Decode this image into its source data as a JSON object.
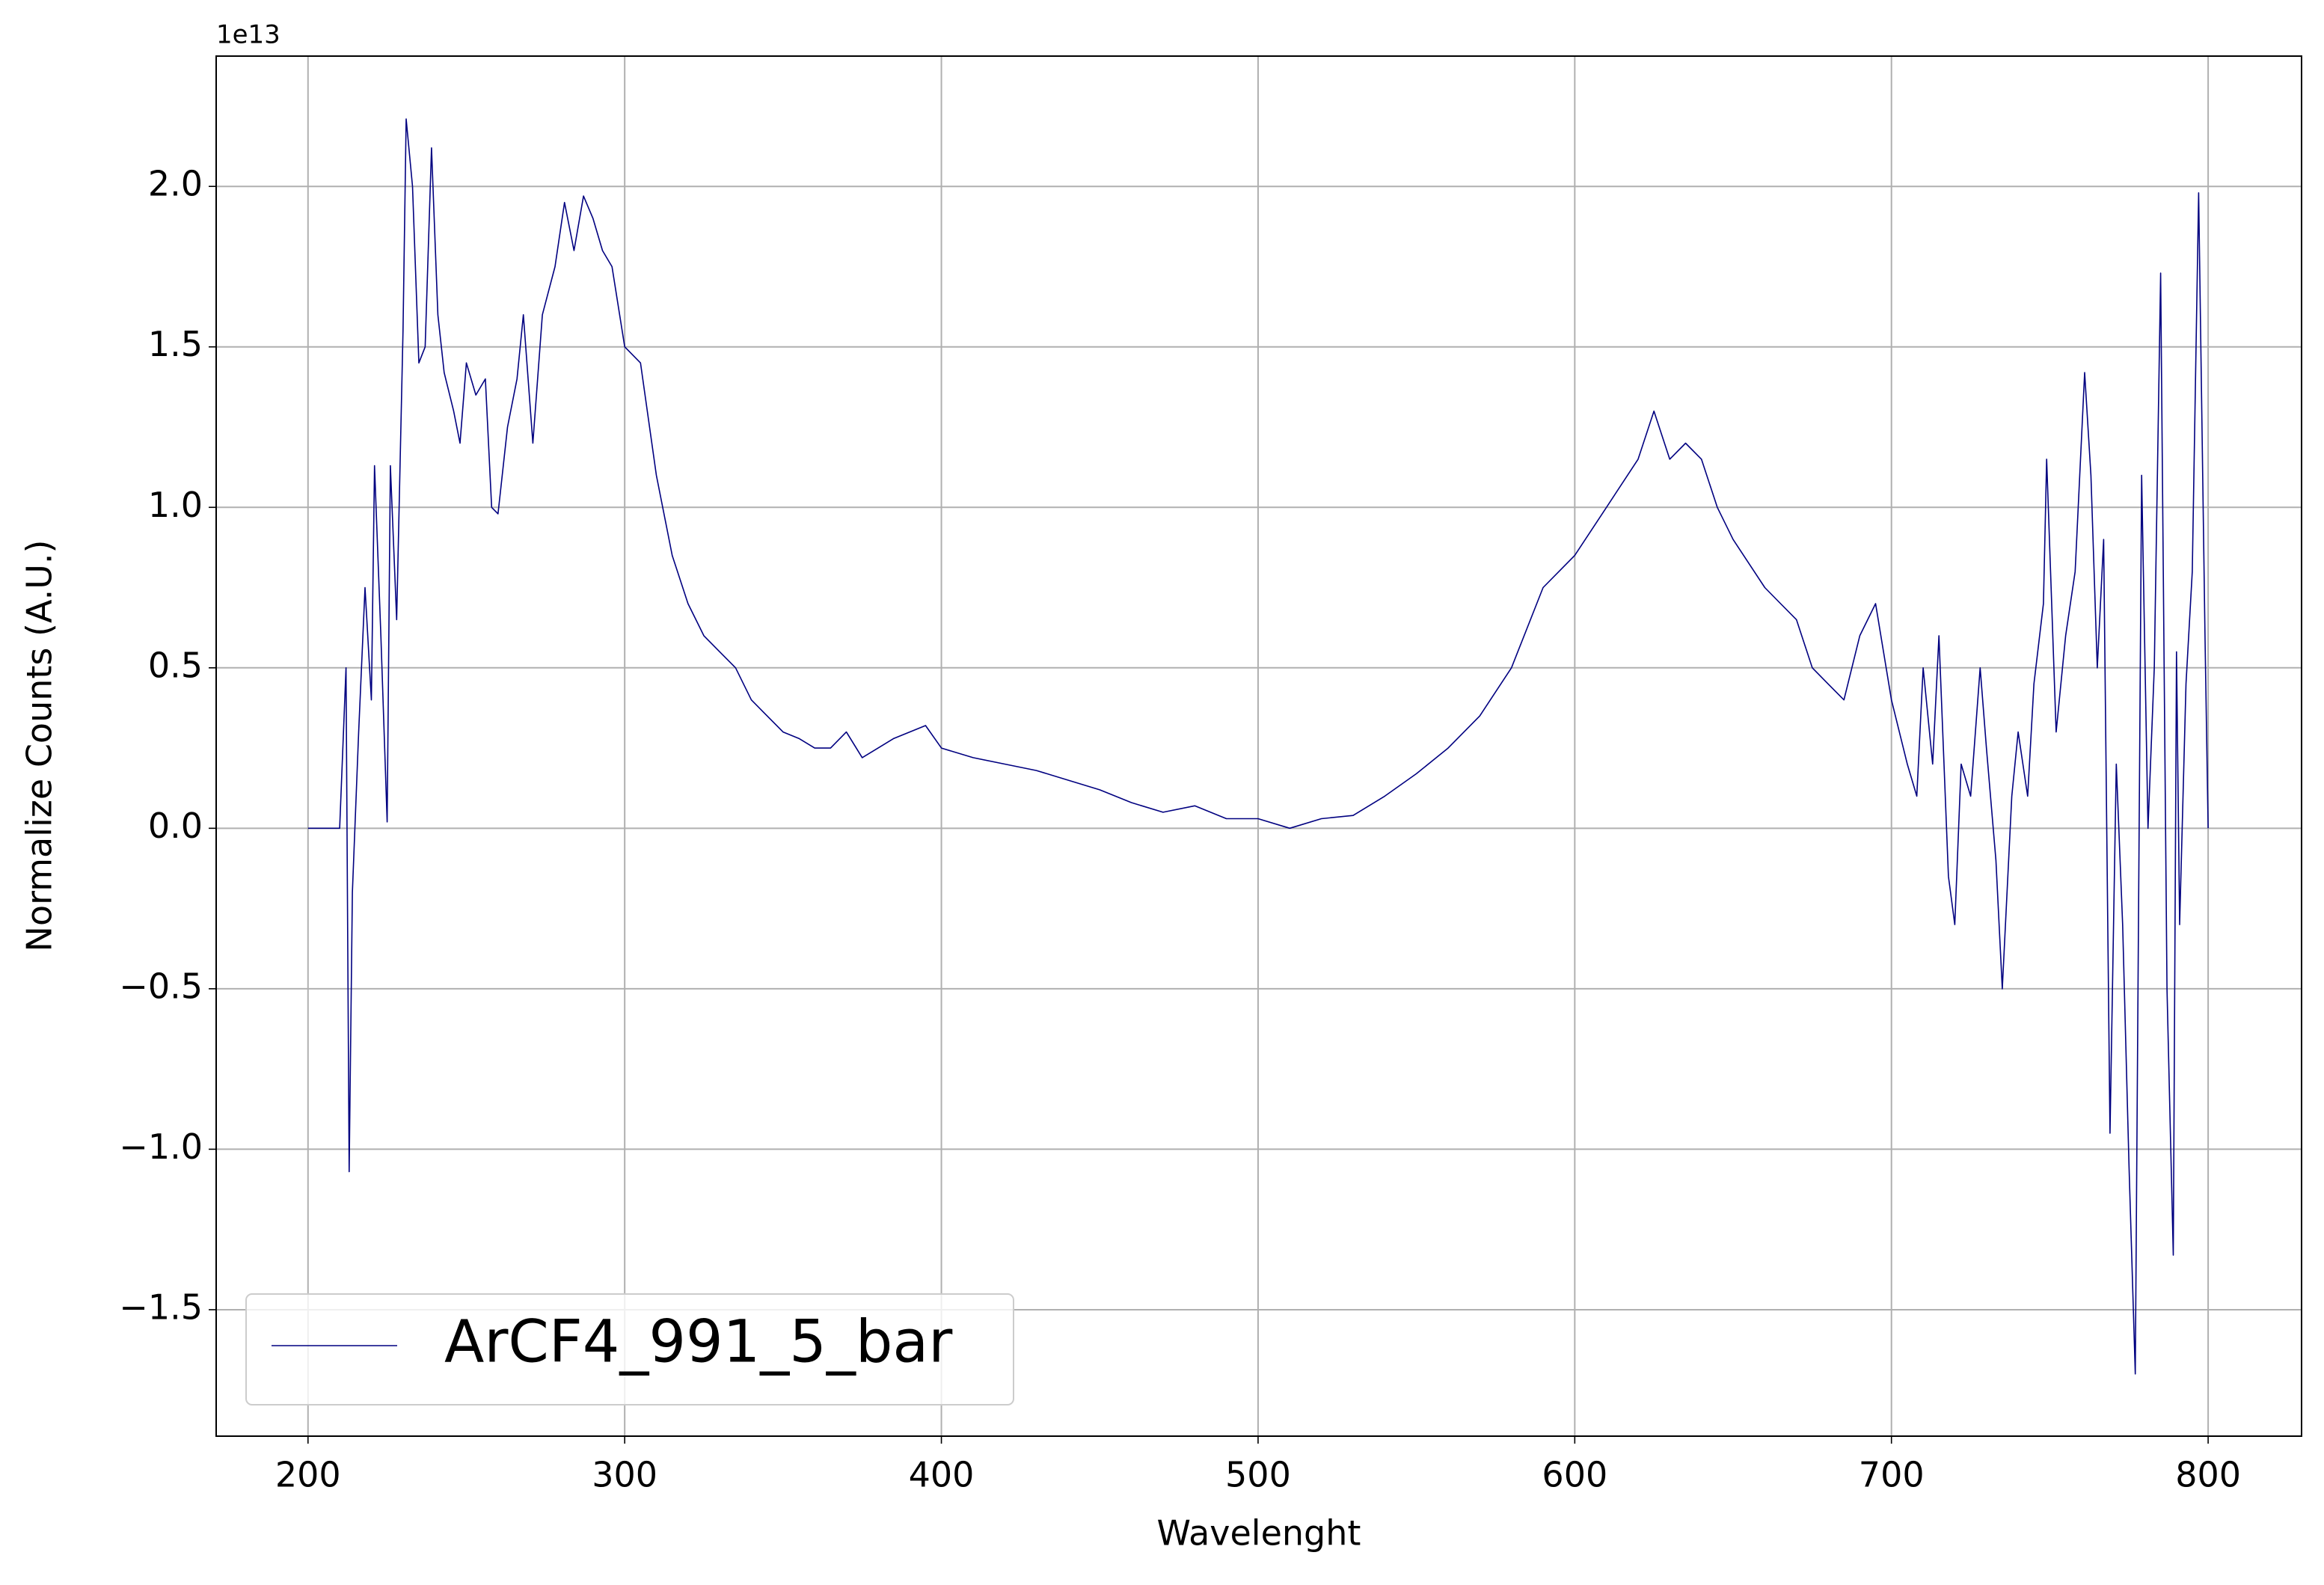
{
  "chart_data": {
    "type": "line",
    "xlabel": "Wavelenght",
    "ylabel": "Normalize Counts (A.U.)",
    "y_offset_label": "1e13",
    "x": [
      200,
      210,
      212,
      213,
      214,
      216,
      218,
      220,
      221,
      223,
      225,
      226,
      228,
      230,
      231,
      233,
      235,
      237,
      239,
      241,
      243,
      246,
      248,
      250,
      253,
      256,
      258,
      260,
      263,
      266,
      268,
      271,
      274,
      278,
      281,
      284,
      287,
      290,
      293,
      296,
      300,
      305,
      310,
      315,
      320,
      325,
      330,
      335,
      340,
      345,
      350,
      355,
      360,
      365,
      370,
      375,
      380,
      385,
      390,
      395,
      400,
      410,
      420,
      430,
      440,
      450,
      460,
      470,
      480,
      490,
      500,
      510,
      520,
      530,
      540,
      550,
      560,
      570,
      580,
      590,
      600,
      610,
      620,
      625,
      630,
      635,
      640,
      645,
      650,
      660,
      665,
      670,
      675,
      680,
      685,
      690,
      695,
      700,
      705,
      708,
      710,
      713,
      715,
      718,
      720,
      722,
      725,
      728,
      730,
      733,
      735,
      738,
      740,
      743,
      745,
      748,
      749,
      752,
      755,
      758,
      761,
      763,
      765,
      767,
      769,
      771,
      773,
      775,
      777,
      779,
      781,
      783,
      785,
      787,
      789,
      790,
      791,
      793,
      795,
      797,
      799,
      800
    ],
    "series": [
      {
        "name": "ArCF4_991_5_bar",
        "color": "#000080",
        "values": [
          0,
          0,
          0.5,
          -1.07,
          -0.2,
          0.3,
          0.75,
          0.4,
          1.13,
          0.6,
          0.02,
          1.13,
          0.65,
          1.55,
          2.21,
          2.0,
          1.45,
          1.5,
          2.12,
          1.6,
          1.42,
          1.3,
          1.2,
          1.45,
          1.35,
          1.4,
          1.0,
          0.98,
          1.25,
          1.4,
          1.6,
          1.2,
          1.6,
          1.75,
          1.95,
          1.8,
          1.97,
          1.9,
          1.8,
          1.75,
          1.5,
          1.45,
          1.1,
          0.85,
          0.7,
          0.6,
          0.55,
          0.5,
          0.4,
          0.35,
          0.3,
          0.28,
          0.25,
          0.25,
          0.3,
          0.22,
          0.25,
          0.28,
          0.3,
          0.32,
          0.25,
          0.22,
          0.2,
          0.18,
          0.15,
          0.12,
          0.08,
          0.05,
          0.07,
          0.03,
          0.03,
          0.0,
          0.03,
          0.04,
          0.1,
          0.17,
          0.25,
          0.35,
          0.5,
          0.75,
          0.85,
          1.0,
          1.15,
          1.3,
          1.15,
          1.2,
          1.15,
          1.0,
          0.9,
          0.75,
          0.7,
          0.65,
          0.5,
          0.45,
          0.4,
          0.6,
          0.7,
          0.4,
          0.2,
          0.1,
          0.5,
          0.2,
          0.6,
          -0.15,
          -0.3,
          0.2,
          0.1,
          0.5,
          0.25,
          -0.1,
          -0.5,
          0.1,
          0.3,
          0.1,
          0.45,
          0.7,
          1.15,
          0.3,
          0.6,
          0.8,
          1.42,
          1.1,
          0.5,
          0.9,
          -0.95,
          0.2,
          -0.3,
          -1.05,
          -1.7,
          1.1,
          0.0,
          0.5,
          1.73,
          -0.5,
          -1.33,
          0.55,
          -0.3,
          0.45,
          0.8,
          1.98,
          0.6,
          0
        ]
      }
    ],
    "xlim": [
      171,
      829.5
    ],
    "ylim": [
      -1.894,
      2.406
    ],
    "xticks": [
      200,
      300,
      400,
      500,
      600,
      700,
      800
    ],
    "yticks": [
      {
        "value": -1.5,
        "label": "−1.5"
      },
      {
        "value": -1.0,
        "label": "−1.0"
      },
      {
        "value": -0.5,
        "label": "−0.5"
      },
      {
        "value": 0,
        "label": "0.0"
      },
      {
        "value": 0.5,
        "label": "0.5"
      },
      {
        "value": 1.0,
        "label": "1.0"
      },
      {
        "value": 1.5,
        "label": "1.5"
      },
      {
        "value": 2.0,
        "label": "2.0"
      }
    ],
    "grid": true,
    "legend": "lower left"
  }
}
